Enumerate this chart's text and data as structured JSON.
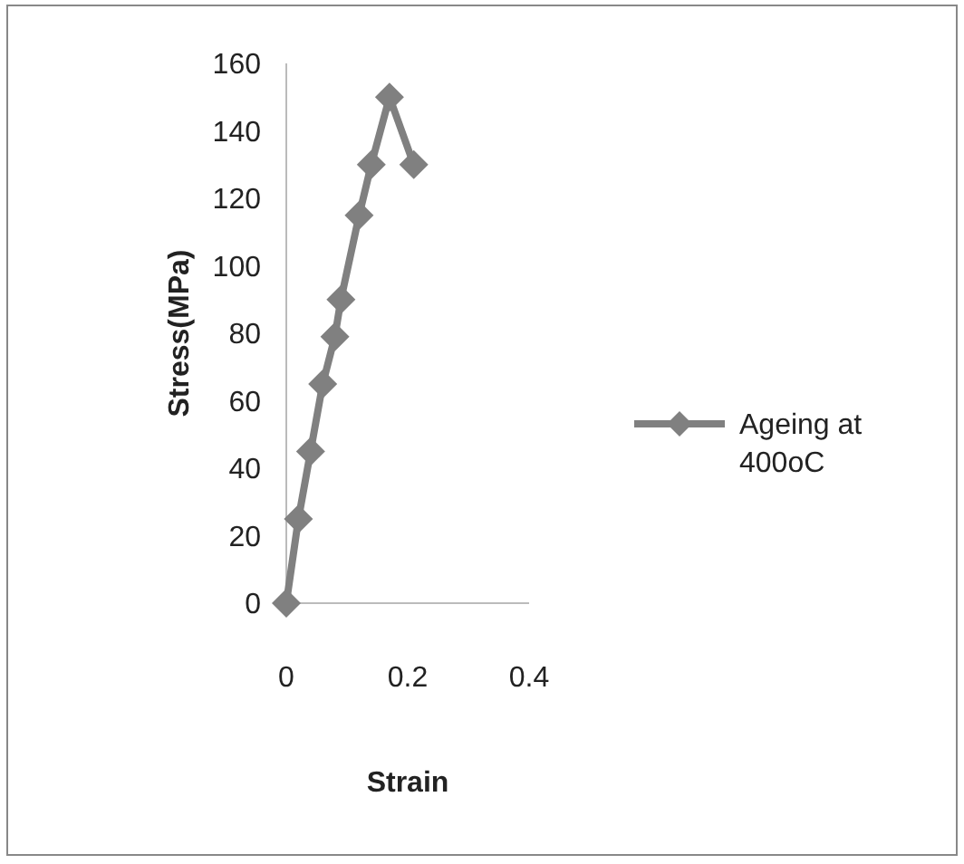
{
  "chart_data": {
    "type": "line",
    "xlabel": "Strain",
    "ylabel": "Stress(MPa)",
    "xlim": [
      0,
      0.4
    ],
    "xticks": [
      0,
      0.2,
      0.4
    ],
    "ylim": [
      0,
      160
    ],
    "yticks": [
      0,
      20,
      40,
      60,
      80,
      100,
      120,
      140,
      160
    ],
    "series": [
      {
        "name": "Ageing at 400oC",
        "color": "#808080",
        "x": [
          0,
          0.02,
          0.04,
          0.06,
          0.08,
          0.09,
          0.12,
          0.14,
          0.17,
          0.21
        ],
        "values": [
          0,
          25,
          45,
          65,
          79,
          90,
          115,
          130,
          150,
          130
        ]
      }
    ],
    "marker": "diamond",
    "line_style": "solid",
    "legend": "right",
    "grid": false
  }
}
